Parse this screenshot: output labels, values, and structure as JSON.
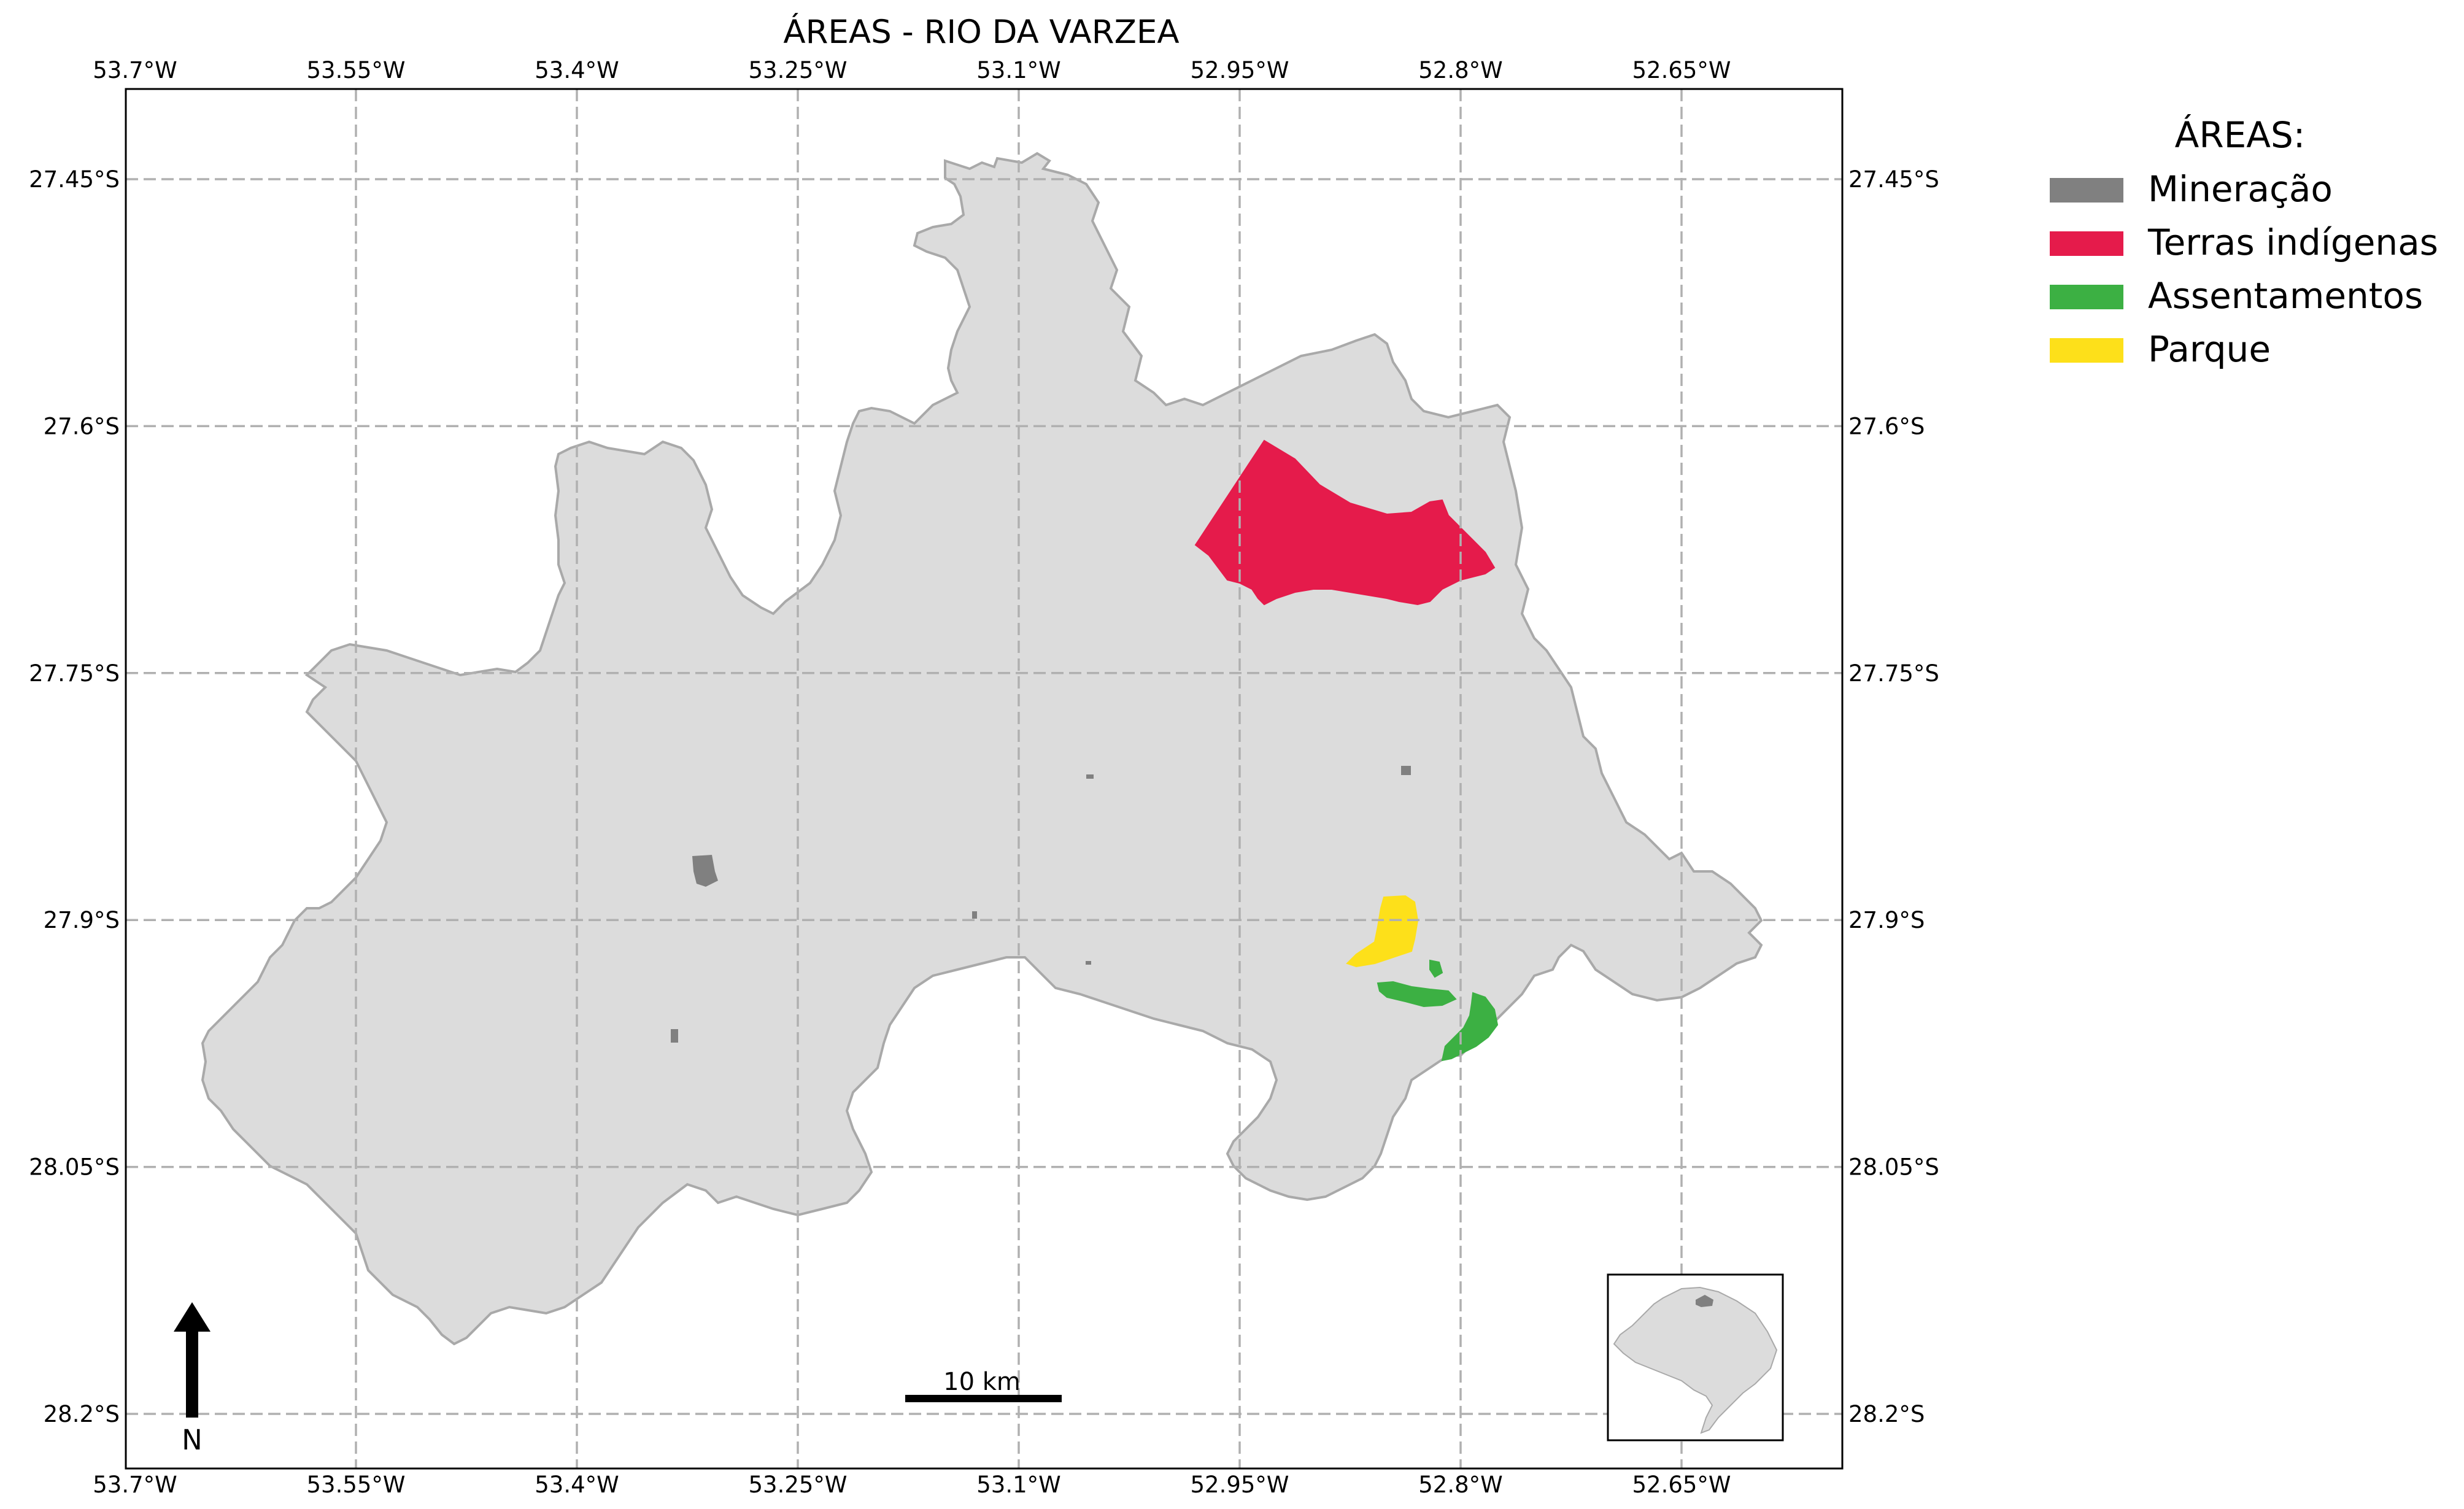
{
  "title": "ÁREAS - RIO DA VARZEA",
  "axes": {
    "lon_ticks": [
      "53.7°W",
      "53.55°W",
      "53.4°W",
      "53.25°W",
      "53.1°W",
      "52.95°W",
      "52.8°W",
      "52.65°W"
    ],
    "lat_ticks": [
      "27.45°S",
      "27.6°S",
      "27.75°S",
      "27.9°S",
      "28.05°S",
      "28.2°S"
    ],
    "lon_values": [
      -53.7,
      -53.55,
      -53.4,
      -53.25,
      -53.1,
      -52.95,
      -52.8,
      -52.65
    ],
    "lat_values": [
      -27.45,
      -27.6,
      -27.75,
      -27.9,
      -28.05,
      -28.2
    ],
    "lon_range": [
      -53.7,
      -52.73
    ],
    "lat_range": [
      -28.23,
      -27.395
    ],
    "grid": true
  },
  "legend": {
    "title": "ÁREAS:",
    "placement": "right",
    "items": [
      {
        "label": "Mineração",
        "color": "#808080"
      },
      {
        "label": "Terras indígenas",
        "color": "#e51b4b"
      },
      {
        "label": "Assentamentos",
        "color": "#3cb043"
      },
      {
        "label": "Parque",
        "color": "#fde01a"
      }
    ]
  },
  "scale_bar": {
    "label": "10 km"
  },
  "north_arrow": {
    "label": "N"
  },
  "colors": {
    "region_fill": "#dcdcdc",
    "region_stroke": "#a9a9a9",
    "frame": "#000000"
  },
  "inset": {
    "description_icon": "state-locator-inset-icon"
  }
}
